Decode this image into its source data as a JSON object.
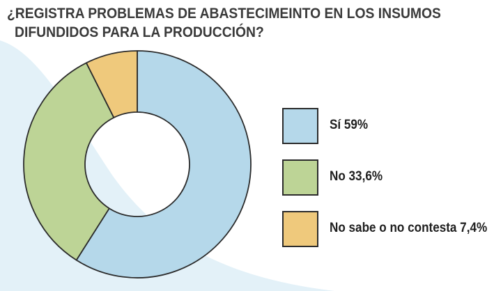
{
  "title_lines": [
    "¿REGISTRA PROBLEMAS DE ABASTECIMEINTO EN LOS INSUMOS",
    "DIFUNDIDOS PARA LA PRODUCCIÓN?"
  ],
  "colors": {
    "background_accent": "#e3f1f8",
    "outline": "#2b2b2b"
  },
  "chart_data": {
    "type": "pie",
    "variant": "donut",
    "title": "¿REGISTRA PROBLEMAS DE ABASTECIMEINTO EN LOS INSUMOS DIFUNDIDOS PARA LA PRODUCCIÓN?",
    "slices": [
      {
        "label": "Sí",
        "value": 59,
        "legend_text": "Sí  59%",
        "color": "#b5d8ea"
      },
      {
        "label": "No",
        "value": 33.6,
        "legend_text": "No 33,6%",
        "color": "#bdd496"
      },
      {
        "label": "No sabe o no contesta",
        "value": 7.4,
        "legend_text": "No sabe o no contesta 7,4%",
        "color": "#efc97c"
      }
    ],
    "start": "top",
    "direction": "clockwise",
    "legend_position": "right"
  }
}
